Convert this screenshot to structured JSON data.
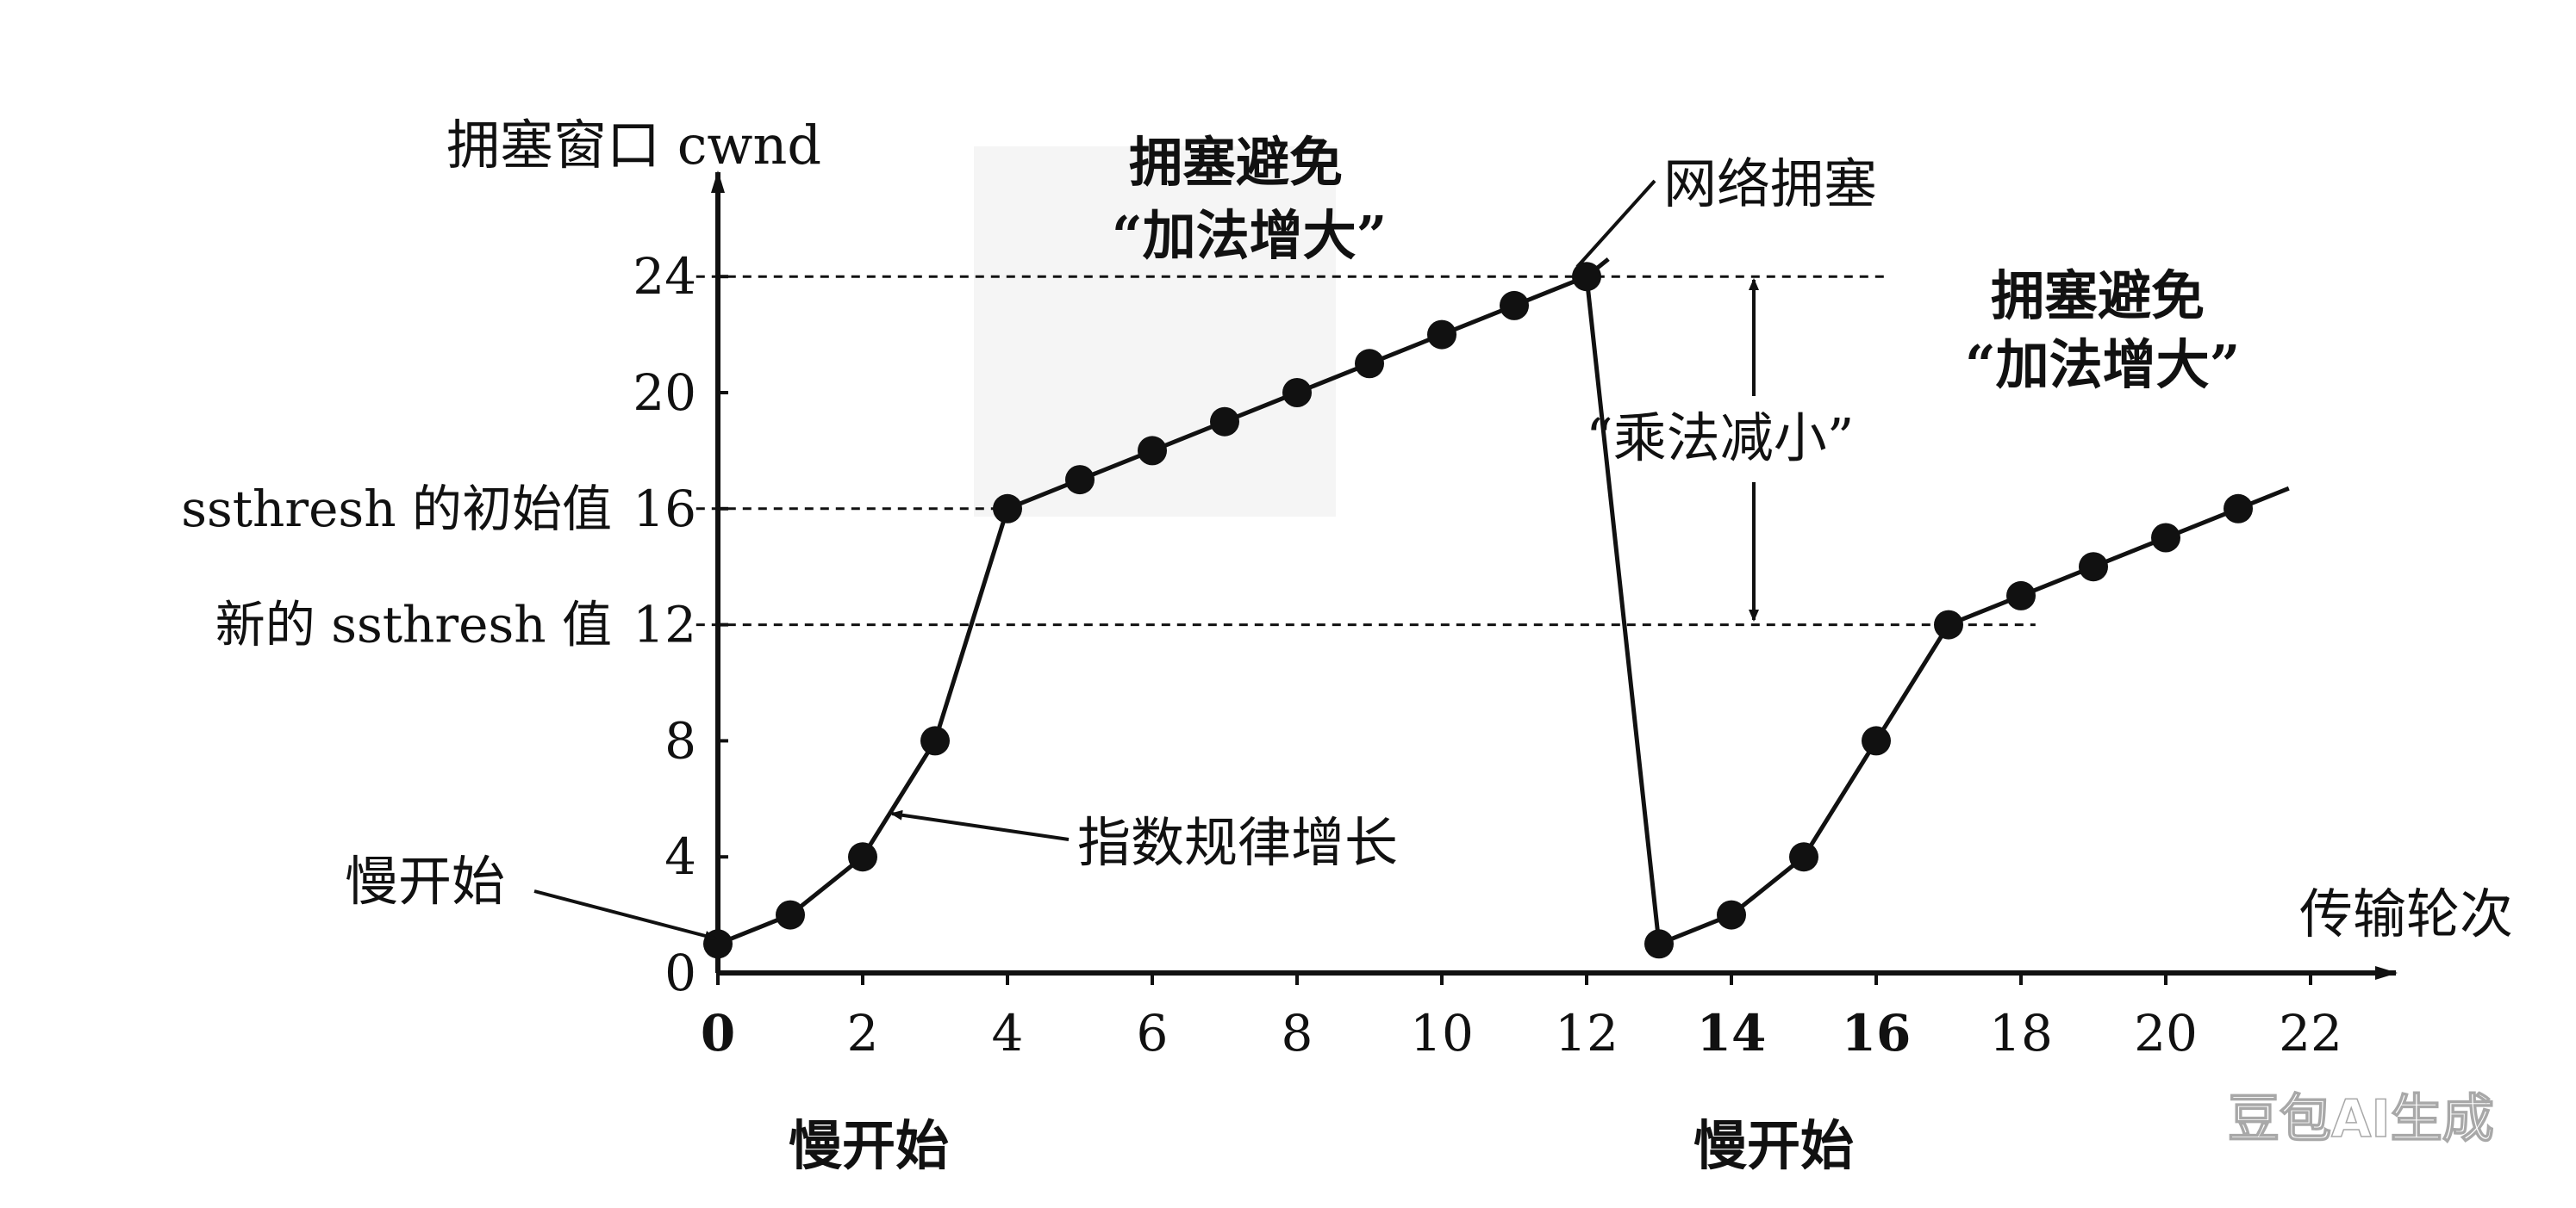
{
  "chart_data": {
    "type": "line",
    "ylabel": "拥塞窗口 cwnd",
    "xlabel": "传输轮次",
    "ylim": [
      0,
      28
    ],
    "xlim": [
      0,
      23
    ],
    "yticks": [
      0,
      4,
      8,
      12,
      16,
      20,
      24
    ],
    "xticks": [
      0,
      2,
      4,
      6,
      8,
      10,
      12,
      14,
      16,
      18,
      20,
      22
    ],
    "grid": false,
    "series": [
      {
        "points": [
          [
            0,
            1
          ],
          [
            1,
            2
          ],
          [
            2,
            4
          ],
          [
            3,
            8
          ],
          [
            4,
            16
          ],
          [
            5,
            17
          ],
          [
            6,
            18
          ],
          [
            7,
            19
          ],
          [
            8,
            20
          ],
          [
            9,
            21
          ],
          [
            10,
            22
          ],
          [
            11,
            23
          ],
          [
            12,
            24
          ],
          [
            13,
            1
          ],
          [
            14,
            2
          ],
          [
            15,
            4
          ],
          [
            16,
            8
          ],
          [
            17,
            12
          ],
          [
            18,
            13
          ],
          [
            19,
            14
          ],
          [
            20,
            15
          ],
          [
            21,
            16
          ]
        ]
      }
    ],
    "reference_lines": [
      {
        "y": 24,
        "x_from": -0.3,
        "x_to": 16.2
      },
      {
        "y": 16,
        "x_from": -0.3,
        "x_to": 4
      },
      {
        "y": 12,
        "x_from": -0.3,
        "x_to": 18.2
      }
    ],
    "y_side_labels": [
      {
        "y": 16,
        "text": "ssthresh 的初始值"
      },
      {
        "y": 12,
        "text": "新的 ssthresh 值"
      }
    ],
    "annotations": {
      "slow_start_1": "慢开始",
      "exp_growth": "指数规律增长",
      "ca1_line1": "拥塞避免",
      "ca1_line2": "“加法增大”",
      "net_congestion": "网络拥塞",
      "multiplicative": "“乘法减小”",
      "ca2_line1": "拥塞避免",
      "ca2_line2": "“加法增大”",
      "slow_start_bottom_1": "慢开始",
      "slow_start_bottom_2": "慢开始"
    }
  },
  "watermark": "豆包AI生成"
}
